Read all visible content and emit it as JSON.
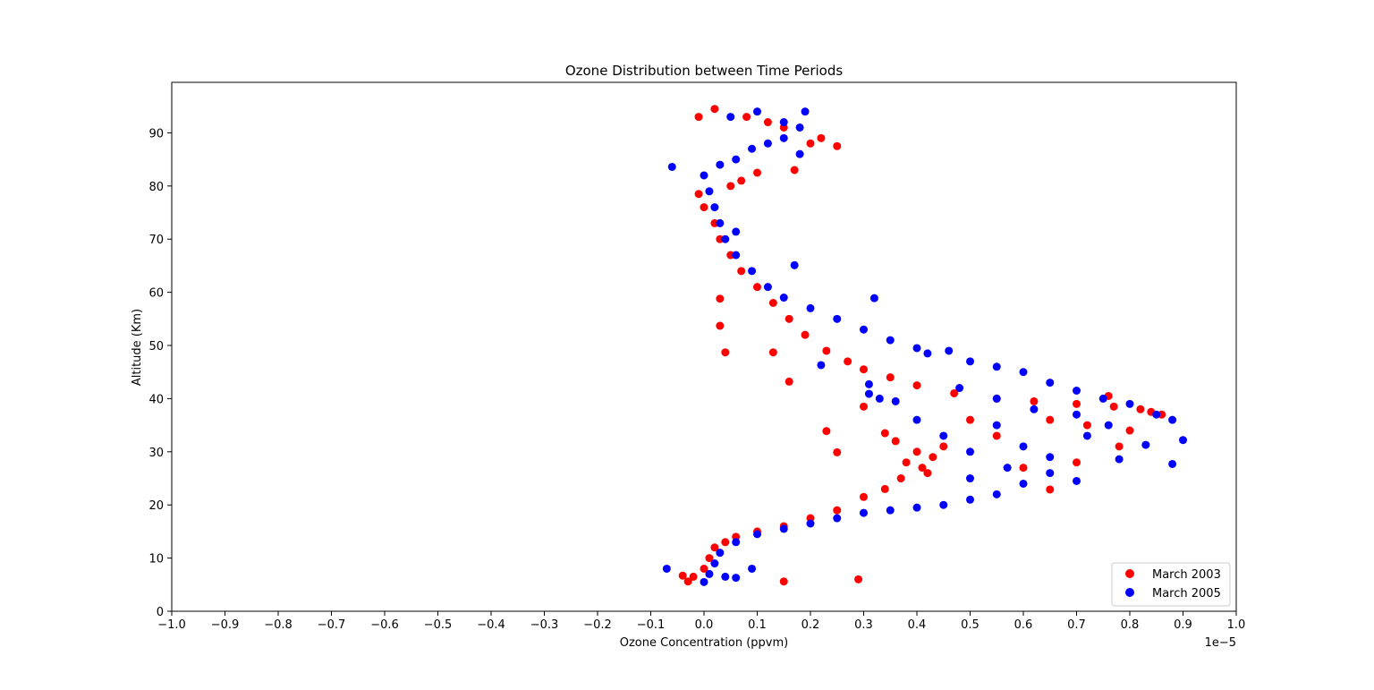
{
  "chart_data": {
    "type": "scatter",
    "title": "Ozone Distribution between Time Periods",
    "xlabel": "Ozone Concentration (ppvm)",
    "ylabel": "Altitude (Km)",
    "x_offset_label": "1e−5",
    "xlim": [
      -1.0,
      1.0
    ],
    "ylim": [
      0,
      99.5
    ],
    "x_ticks": [
      -1.0,
      -0.9,
      -0.8,
      -0.7,
      -0.6,
      -0.5,
      -0.4,
      -0.3,
      -0.2,
      -0.1,
      0.0,
      0.1,
      0.2,
      0.3,
      0.4,
      0.5,
      0.6,
      0.7,
      0.8,
      0.9,
      1.0
    ],
    "x_tick_labels": [
      "−1.0",
      "−0.9",
      "−0.8",
      "−0.7",
      "−0.6",
      "−0.5",
      "−0.4",
      "−0.3",
      "−0.2",
      "−0.1",
      "0.0",
      "0.1",
      "0.2",
      "0.3",
      "0.4",
      "0.5",
      "0.6",
      "0.7",
      "0.8",
      "0.9",
      "1.0"
    ],
    "y_ticks": [
      0,
      10,
      20,
      30,
      40,
      50,
      60,
      70,
      80,
      90
    ],
    "y_tick_labels": [
      "0",
      "10",
      "20",
      "30",
      "40",
      "50",
      "60",
      "70",
      "80",
      "90"
    ],
    "grid": false,
    "legend_position": "lower-right",
    "series": [
      {
        "name": "March 2003",
        "color": "#ff0000",
        "points": [
          [
            -0.01,
            93
          ],
          [
            0.02,
            94.5
          ],
          [
            0.08,
            93
          ],
          [
            0.12,
            92
          ],
          [
            0.15,
            91
          ],
          [
            0.2,
            88
          ],
          [
            0.25,
            87.5
          ],
          [
            0.22,
            89
          ],
          [
            0.17,
            83
          ],
          [
            0.1,
            82.5
          ],
          [
            0.07,
            81
          ],
          [
            0.05,
            80
          ],
          [
            -0.01,
            78.5
          ],
          [
            0.0,
            76
          ],
          [
            0.02,
            73
          ],
          [
            0.03,
            70
          ],
          [
            0.05,
            67
          ],
          [
            0.07,
            64
          ],
          [
            0.1,
            61
          ],
          [
            0.13,
            58
          ],
          [
            0.16,
            55
          ],
          [
            0.19,
            52
          ],
          [
            0.23,
            49
          ],
          [
            0.27,
            47
          ],
          [
            0.3,
            45.5
          ],
          [
            0.03,
            58.8
          ],
          [
            0.03,
            53.7
          ],
          [
            0.04,
            48.7
          ],
          [
            0.13,
            48.7
          ],
          [
            0.16,
            43.2
          ],
          [
            0.3,
            38.5
          ],
          [
            0.34,
            33.5
          ],
          [
            0.23,
            33.9
          ],
          [
            0.25,
            29.9
          ],
          [
            0.35,
            44
          ],
          [
            0.4,
            42.5
          ],
          [
            0.47,
            41
          ],
          [
            0.55,
            40
          ],
          [
            0.62,
            39.5
          ],
          [
            0.7,
            39
          ],
          [
            0.77,
            38.5
          ],
          [
            0.82,
            38
          ],
          [
            0.86,
            37
          ],
          [
            0.84,
            37.5
          ],
          [
            0.76,
            40.5
          ],
          [
            0.36,
            32
          ],
          [
            0.4,
            30
          ],
          [
            0.38,
            28
          ],
          [
            0.42,
            26
          ],
          [
            0.45,
            31
          ],
          [
            0.43,
            29
          ],
          [
            0.41,
            27
          ],
          [
            0.37,
            25
          ],
          [
            0.34,
            23
          ],
          [
            0.3,
            21.5
          ],
          [
            0.25,
            19
          ],
          [
            0.2,
            17.5
          ],
          [
            0.15,
            16
          ],
          [
            0.1,
            15
          ],
          [
            0.06,
            14
          ],
          [
            0.04,
            13
          ],
          [
            0.02,
            12
          ],
          [
            0.01,
            10
          ],
          [
            0.0,
            8
          ],
          [
            -0.02,
            6.5
          ],
          [
            -0.04,
            6.7
          ],
          [
            -0.03,
            5.6
          ],
          [
            0.15,
            5.6
          ],
          [
            0.29,
            6
          ],
          [
            0.65,
            22.9
          ],
          [
            0.6,
            27
          ],
          [
            0.55,
            33
          ],
          [
            0.5,
            36
          ],
          [
            0.65,
            36
          ],
          [
            0.72,
            35
          ],
          [
            0.8,
            34
          ],
          [
            0.78,
            31
          ],
          [
            0.7,
            28
          ]
        ]
      },
      {
        "name": "March 2005",
        "color": "#0000ff",
        "points": [
          [
            0.05,
            93
          ],
          [
            0.1,
            94
          ],
          [
            0.15,
            92
          ],
          [
            0.19,
            94
          ],
          [
            0.18,
            91
          ],
          [
            0.15,
            89
          ],
          [
            0.12,
            88
          ],
          [
            0.09,
            87
          ],
          [
            0.06,
            85
          ],
          [
            0.03,
            84
          ],
          [
            -0.06,
            83.6
          ],
          [
            0.18,
            86
          ],
          [
            0.0,
            82
          ],
          [
            0.01,
            79
          ],
          [
            0.02,
            76
          ],
          [
            0.03,
            73
          ],
          [
            0.04,
            70
          ],
          [
            0.06,
            67
          ],
          [
            0.09,
            64
          ],
          [
            0.12,
            61
          ],
          [
            0.15,
            59
          ],
          [
            0.2,
            57
          ],
          [
            0.25,
            55
          ],
          [
            0.3,
            53
          ],
          [
            0.35,
            51
          ],
          [
            0.4,
            49.5
          ],
          [
            0.06,
            71.4
          ],
          [
            0.17,
            65.1
          ],
          [
            0.32,
            58.9
          ],
          [
            0.22,
            46.3
          ],
          [
            0.31,
            42.7
          ],
          [
            0.31,
            40.9
          ],
          [
            0.33,
            40
          ],
          [
            0.36,
            39.5
          ],
          [
            0.42,
            48.5
          ],
          [
            0.46,
            49
          ],
          [
            0.5,
            47
          ],
          [
            0.55,
            46
          ],
          [
            0.6,
            45
          ],
          [
            0.65,
            43
          ],
          [
            0.7,
            41.5
          ],
          [
            0.75,
            40
          ],
          [
            0.8,
            39
          ],
          [
            0.85,
            37
          ],
          [
            0.88,
            36
          ],
          [
            0.9,
            32.2
          ],
          [
            0.88,
            27.7
          ],
          [
            0.83,
            31.3
          ],
          [
            0.78,
            28.6
          ],
          [
            0.7,
            24.5
          ],
          [
            0.65,
            26
          ],
          [
            0.6,
            24
          ],
          [
            0.55,
            22
          ],
          [
            0.5,
            21
          ],
          [
            0.45,
            20
          ],
          [
            0.4,
            19.5
          ],
          [
            0.35,
            19
          ],
          [
            0.3,
            18.5
          ],
          [
            0.25,
            17.5
          ],
          [
            0.2,
            16.5
          ],
          [
            0.15,
            15.5
          ],
          [
            0.1,
            14.5
          ],
          [
            0.06,
            13
          ],
          [
            0.03,
            11
          ],
          [
            0.02,
            9
          ],
          [
            0.01,
            7
          ],
          [
            0.0,
            5.5
          ],
          [
            0.04,
            6.5
          ],
          [
            0.06,
            6.3
          ],
          [
            -0.07,
            8
          ],
          [
            0.09,
            8
          ],
          [
            0.4,
            36
          ],
          [
            0.45,
            33
          ],
          [
            0.5,
            30
          ],
          [
            0.55,
            35
          ],
          [
            0.6,
            31
          ],
          [
            0.65,
            29
          ],
          [
            0.72,
            33
          ],
          [
            0.76,
            35
          ],
          [
            0.7,
            37
          ],
          [
            0.62,
            38
          ],
          [
            0.55,
            40
          ],
          [
            0.48,
            42
          ],
          [
            0.5,
            25
          ],
          [
            0.57,
            27
          ]
        ]
      }
    ]
  }
}
